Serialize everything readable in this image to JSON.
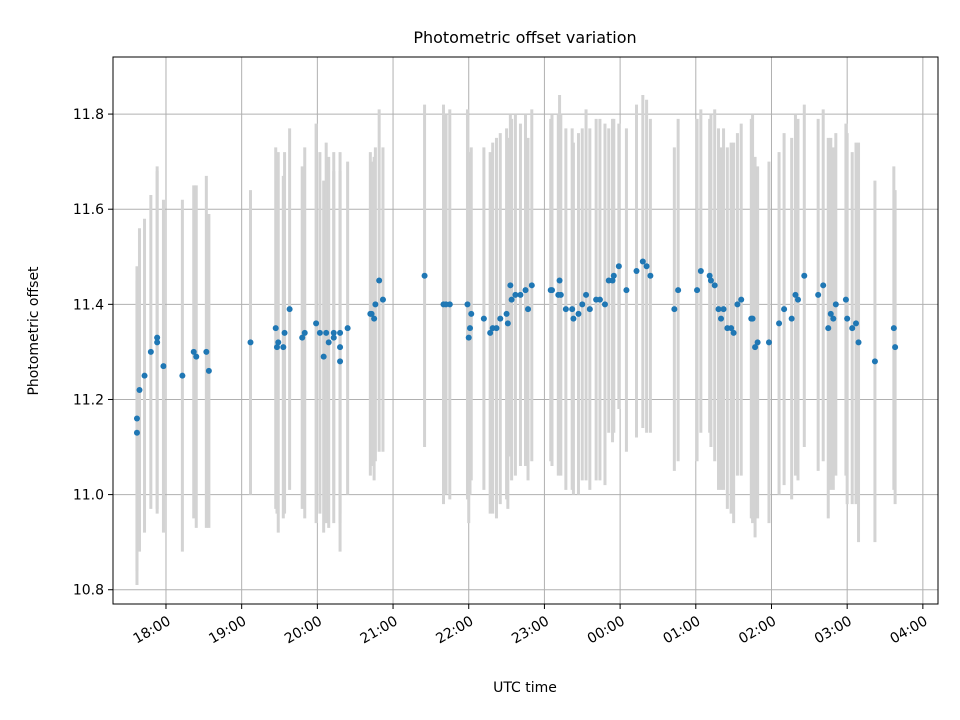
{
  "chart_data": {
    "type": "scatter",
    "title": "Photometric offset variation",
    "xlabel": "UTC time",
    "ylabel": "Photometric offset",
    "x_ticks": [
      "18:00",
      "19:00",
      "20:00",
      "21:00",
      "22:00",
      "23:00",
      "00:00",
      "01:00",
      "02:00",
      "03:00",
      "04:00"
    ],
    "y_ticks": [
      "10.8",
      "11.0",
      "11.2",
      "11.4",
      "11.6",
      "11.8"
    ],
    "xlim": [
      "17:18",
      "04:12"
    ],
    "ylim": [
      10.77,
      11.92
    ],
    "grid": true,
    "colors": {
      "points": "#1f77b4",
      "errorbars": "#d3d3d3",
      "grid": "#b0b0b0"
    },
    "series": [
      {
        "x": [
          "17:37",
          "17:37",
          "17:39",
          "17:43",
          "17:48",
          "17:53",
          "17:53",
          "17:58",
          "18:13",
          "18:22",
          "18:24",
          "18:32",
          "18:34",
          "19:07",
          "19:27",
          "19:28",
          "19:29",
          "19:33",
          "19:34",
          "19:38",
          "19:48",
          "19:50",
          "19:59",
          "20:02",
          "20:05",
          "20:07",
          "20:09",
          "20:13",
          "20:13",
          "20:18",
          "20:18",
          "20:18",
          "20:24",
          "20:42",
          "20:43",
          "20:45",
          "20:46",
          "20:49",
          "20:52",
          "21:25",
          "21:40",
          "21:42",
          "21:45",
          "21:59",
          "22:00",
          "22:01",
          "22:02",
          "22:12",
          "22:17",
          "22:19",
          "22:22",
          "22:25",
          "22:30",
          "22:31",
          "22:33",
          "22:34",
          "22:37",
          "22:41",
          "22:45",
          "22:47",
          "22:50",
          "23:05",
          "23:06",
          "23:11",
          "23:12",
          "23:13",
          "23:17",
          "23:22",
          "23:23",
          "23:27",
          "23:30",
          "23:33",
          "23:36",
          "23:41",
          "23:44",
          "23:48",
          "23:51",
          "23:54",
          "23:55",
          "23:59",
          "00:05",
          "00:13",
          "00:18",
          "00:21",
          "00:24",
          "00:43",
          "00:46",
          "01:01",
          "01:04",
          "01:11",
          "01:12",
          "01:15",
          "01:18",
          "01:20",
          "01:22",
          "01:25",
          "01:28",
          "01:30",
          "01:33",
          "01:36",
          "01:44",
          "01:45",
          "01:47",
          "01:49",
          "01:58",
          "02:06",
          "02:10",
          "02:16",
          "02:19",
          "02:21",
          "02:26",
          "02:37",
          "02:41",
          "02:45",
          "02:47",
          "02:49",
          "02:51",
          "02:59",
          "03:00",
          "03:04",
          "03:07",
          "03:09",
          "03:22",
          "03:37",
          "03:38"
        ],
        "y": [
          11.16,
          11.13,
          11.22,
          11.25,
          11.3,
          11.33,
          11.32,
          11.27,
          11.25,
          11.3,
          11.29,
          11.3,
          11.26,
          11.32,
          11.35,
          11.31,
          11.32,
          11.31,
          11.34,
          11.39,
          11.33,
          11.34,
          11.36,
          11.34,
          11.29,
          11.34,
          11.32,
          11.34,
          11.33,
          11.31,
          11.28,
          11.34,
          11.35,
          11.38,
          11.38,
          11.37,
          11.4,
          11.45,
          11.41,
          11.46,
          11.4,
          11.4,
          11.4,
          11.4,
          11.33,
          11.35,
          11.38,
          11.37,
          11.34,
          11.35,
          11.35,
          11.37,
          11.38,
          11.36,
          11.44,
          11.41,
          11.42,
          11.42,
          11.43,
          11.39,
          11.44,
          11.43,
          11.43,
          11.42,
          11.45,
          11.42,
          11.39,
          11.39,
          11.37,
          11.38,
          11.4,
          11.42,
          11.39,
          11.41,
          11.41,
          11.4,
          11.45,
          11.45,
          11.46,
          11.48,
          11.43,
          11.47,
          11.49,
          11.48,
          11.46,
          11.39,
          11.43,
          11.43,
          11.47,
          11.46,
          11.45,
          11.44,
          11.39,
          11.37,
          11.39,
          11.35,
          11.35,
          11.34,
          11.4,
          11.41,
          11.37,
          11.37,
          11.31,
          11.32,
          11.32,
          11.36,
          11.39,
          11.37,
          11.42,
          11.41,
          11.46,
          11.42,
          11.44,
          11.35,
          11.38,
          11.37,
          11.4,
          11.41,
          11.37,
          11.35,
          11.36,
          11.32,
          11.28,
          11.35,
          11.31
        ],
        "yerr": [
          0.32,
          0.32,
          0.34,
          0.33,
          0.33,
          0.36,
          0.36,
          0.35,
          0.37,
          0.35,
          0.36,
          0.37,
          0.33,
          0.32,
          0.38,
          0.35,
          0.4,
          0.36,
          0.38,
          0.38,
          0.36,
          0.39,
          0.42,
          0.38,
          0.37,
          0.4,
          0.39,
          0.34,
          0.39,
          0.37,
          0.4,
          0.38,
          0.35,
          0.34,
          0.32,
          0.34,
          0.33,
          0.36,
          0.32,
          0.36,
          0.42,
          0.4,
          0.41,
          0.41,
          0.39,
          0.35,
          0.35,
          0.36,
          0.38,
          0.39,
          0.4,
          0.39,
          0.39,
          0.39,
          0.36,
          0.38,
          0.38,
          0.36,
          0.37,
          0.36,
          0.37,
          0.36,
          0.37,
          0.38,
          0.39,
          0.38,
          0.38,
          0.38,
          0.37,
          0.38,
          0.37,
          0.39,
          0.38,
          0.38,
          0.38,
          0.38,
          0.32,
          0.34,
          0.33,
          0.3,
          0.34,
          0.35,
          0.35,
          0.35,
          0.33,
          0.34,
          0.36,
          0.36,
          0.34,
          0.33,
          0.35,
          0.37,
          0.38,
          0.36,
          0.38,
          0.38,
          0.39,
          0.4,
          0.36,
          0.37,
          0.42,
          0.43,
          0.4,
          0.37,
          0.38,
          0.36,
          0.37,
          0.38,
          0.38,
          0.38,
          0.36,
          0.37,
          0.37,
          0.4,
          0.37,
          0.36,
          0.36,
          0.37,
          0.39,
          0.37,
          0.38,
          0.42,
          0.38,
          0.34,
          0.33
        ]
      }
    ]
  }
}
